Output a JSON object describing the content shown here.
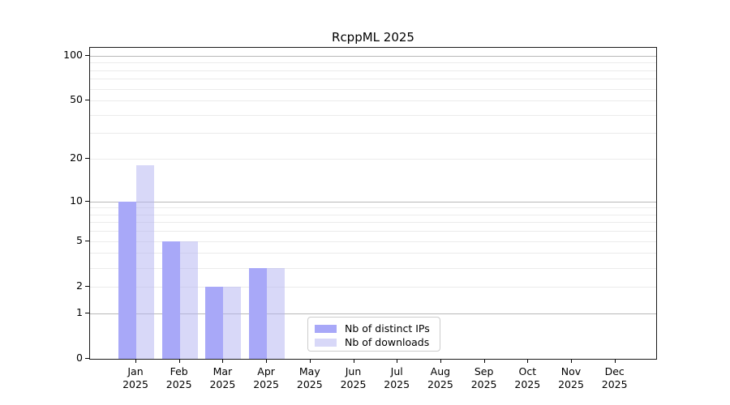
{
  "chart_data": {
    "type": "bar",
    "title": "RcppML 2025",
    "categories": [
      "Jan",
      "Feb",
      "Mar",
      "Apr",
      "May",
      "Jun",
      "Jul",
      "Aug",
      "Sep",
      "Oct",
      "Nov",
      "Dec"
    ],
    "year": "2025",
    "series": [
      {
        "name": "Nb of distinct IPs",
        "color": "#a8a8f8",
        "fill": "#a8a8f8",
        "values": [
          10,
          5,
          2,
          3,
          0,
          0,
          0,
          0,
          0,
          0,
          0,
          0
        ]
      },
      {
        "name": "Nb of downloads",
        "color": "#d8d8f8",
        "fill": "rgba(177,177,241,0.5)",
        "values": [
          18,
          5,
          2,
          3,
          0,
          0,
          0,
          0,
          0,
          0,
          0,
          0
        ]
      }
    ],
    "xlabel": "",
    "ylabel": "",
    "yscale": "log10(value+1)",
    "ylim": [
      0,
      120
    ],
    "yticks": [
      0,
      1,
      2,
      5,
      10,
      20,
      50,
      100
    ],
    "major_gridlines": [
      1,
      10,
      100
    ],
    "minor_gridlines": [
      2,
      3,
      4,
      5,
      6,
      7,
      8,
      9,
      20,
      30,
      40,
      50,
      60,
      70,
      80,
      90
    ],
    "grid": true,
    "legend": {
      "position": "lower-center-inside",
      "labels": [
        "Nb of distinct IPs",
        "Nb of downloads"
      ]
    },
    "colors": {
      "distinct_ips_bar": "#a8a8f8",
      "downloads_bar": "#d8d8f8",
      "major_gridline": "#b9b9b9",
      "minor_gridline": "#ebebeb",
      "frame": "#1a1a1a",
      "background": "#ffffff"
    }
  }
}
